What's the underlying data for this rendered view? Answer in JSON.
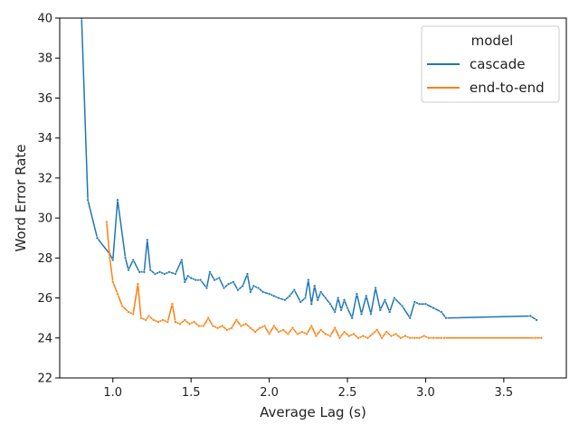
{
  "chart_data": {
    "type": "line",
    "title": "",
    "xlabel": "Average Lag (s)",
    "ylabel": "Word Error Rate",
    "xlim": [
      0.66,
      3.9
    ],
    "ylim": [
      22,
      40
    ],
    "xticks": [
      1.0,
      1.5,
      2.0,
      2.5,
      3.0,
      3.5
    ],
    "xtick_labels": [
      "1.0",
      "1.5",
      "2.0",
      "2.5",
      "3.0",
      "3.5"
    ],
    "yticks": [
      22,
      24,
      26,
      28,
      30,
      32,
      34,
      36,
      38,
      40
    ],
    "ytick_labels": [
      "22",
      "24",
      "26",
      "28",
      "30",
      "32",
      "34",
      "36",
      "38",
      "40"
    ],
    "grid": false,
    "legend": {
      "title": "model",
      "placement": "top-right"
    },
    "series": [
      {
        "name": "cascade",
        "color": "#1f77b4",
        "x": [
          0.8,
          0.84,
          0.9,
          0.98,
          1.0,
          1.03,
          1.08,
          1.1,
          1.13,
          1.17,
          1.2,
          1.22,
          1.24,
          1.27,
          1.3,
          1.33,
          1.36,
          1.4,
          1.44,
          1.46,
          1.48,
          1.5,
          1.53,
          1.56,
          1.6,
          1.62,
          1.65,
          1.68,
          1.71,
          1.74,
          1.77,
          1.8,
          1.83,
          1.86,
          1.88,
          1.9,
          1.93,
          1.96,
          2.0,
          2.03,
          2.06,
          2.1,
          2.13,
          2.16,
          2.2,
          2.23,
          2.25,
          2.27,
          2.29,
          2.31,
          2.33,
          2.36,
          2.39,
          2.42,
          2.44,
          2.46,
          2.48,
          2.5,
          2.53,
          2.56,
          2.59,
          2.62,
          2.65,
          2.68,
          2.71,
          2.74,
          2.77,
          2.8,
          2.85,
          2.9,
          2.93,
          2.96,
          3.0,
          3.05,
          3.1,
          3.13,
          3.67,
          3.71
        ],
        "y": [
          40.0,
          30.9,
          29.0,
          28.2,
          27.9,
          30.9,
          28.0,
          27.4,
          27.9,
          27.3,
          27.3,
          28.9,
          27.4,
          27.2,
          27.3,
          27.2,
          27.3,
          27.2,
          27.9,
          26.8,
          27.1,
          27.0,
          26.9,
          26.9,
          26.5,
          27.3,
          26.9,
          27.0,
          26.5,
          26.7,
          26.8,
          26.4,
          26.6,
          27.2,
          26.3,
          26.6,
          26.5,
          26.3,
          26.2,
          26.1,
          26.0,
          25.9,
          26.1,
          26.4,
          25.8,
          26.0,
          26.9,
          25.7,
          26.6,
          25.9,
          26.3,
          26.0,
          25.7,
          25.3,
          26.0,
          25.4,
          25.9,
          25.5,
          25.0,
          26.2,
          25.2,
          26.1,
          25.2,
          26.5,
          25.4,
          25.9,
          25.3,
          26.0,
          25.6,
          25.0,
          25.8,
          25.7,
          25.7,
          25.5,
          25.3,
          25.0,
          25.1,
          24.9
        ]
      },
      {
        "name": "end-to-end",
        "color": "#ff7f0e",
        "x": [
          0.96,
          0.98,
          1.0,
          1.03,
          1.06,
          1.1,
          1.13,
          1.16,
          1.18,
          1.21,
          1.23,
          1.26,
          1.29,
          1.32,
          1.35,
          1.38,
          1.4,
          1.43,
          1.46,
          1.49,
          1.52,
          1.55,
          1.58,
          1.61,
          1.64,
          1.67,
          1.7,
          1.73,
          1.76,
          1.79,
          1.82,
          1.85,
          1.88,
          1.91,
          1.94,
          1.97,
          2.0,
          2.03,
          2.06,
          2.09,
          2.12,
          2.15,
          2.18,
          2.21,
          2.24,
          2.27,
          2.3,
          2.33,
          2.36,
          2.39,
          2.42,
          2.45,
          2.48,
          2.51,
          2.54,
          2.57,
          2.6,
          2.63,
          2.66,
          2.69,
          2.72,
          2.75,
          2.78,
          2.81,
          2.84,
          2.87,
          2.9,
          2.93,
          2.96,
          2.99,
          3.02,
          3.05,
          3.1,
          3.12,
          3.7,
          3.74
        ],
        "y": [
          29.8,
          28.0,
          26.8,
          26.2,
          25.6,
          25.3,
          25.2,
          26.7,
          25.0,
          24.9,
          25.1,
          24.9,
          24.8,
          24.9,
          24.8,
          25.7,
          24.8,
          24.7,
          24.9,
          24.7,
          24.8,
          24.6,
          24.6,
          25.0,
          24.6,
          24.5,
          24.6,
          24.4,
          24.5,
          24.9,
          24.6,
          24.7,
          24.5,
          24.3,
          24.5,
          24.6,
          24.2,
          24.6,
          24.3,
          24.4,
          24.2,
          24.5,
          24.2,
          24.3,
          24.2,
          24.6,
          24.1,
          24.4,
          24.2,
          24.1,
          24.5,
          24.0,
          24.3,
          24.1,
          24.2,
          24.0,
          24.1,
          24.0,
          24.2,
          24.4,
          24.0,
          24.3,
          24.1,
          24.2,
          24.0,
          24.1,
          24.0,
          24.0,
          24.0,
          24.1,
          24.0,
          24.0,
          24.0,
          24.0,
          24.0,
          24.0
        ]
      }
    ]
  }
}
